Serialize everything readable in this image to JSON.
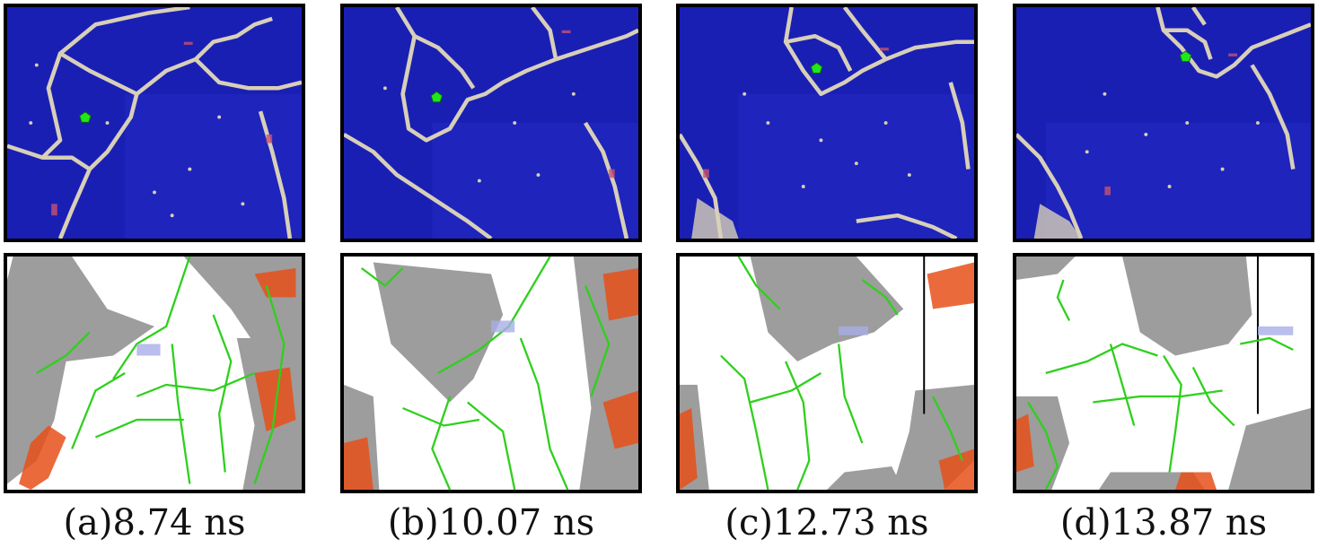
{
  "figure": {
    "panels": [
      {
        "id": "a",
        "caption": "(a)8.74 ns"
      },
      {
        "id": "b",
        "caption": "(b)10.07 ns"
      },
      {
        "id": "c",
        "caption": "(c)12.73 ns"
      },
      {
        "id": "d",
        "caption": "(d)13.87 ns"
      }
    ]
  },
  "colors": {
    "grain": "#1a1fb4",
    "boundary": "#d8cfb8",
    "marker": "#22e61c",
    "dislocation": "#2ed01c",
    "surface": "#8c8c8c",
    "stacking_fault": "#e8501a",
    "void": "#a8aee8"
  }
}
